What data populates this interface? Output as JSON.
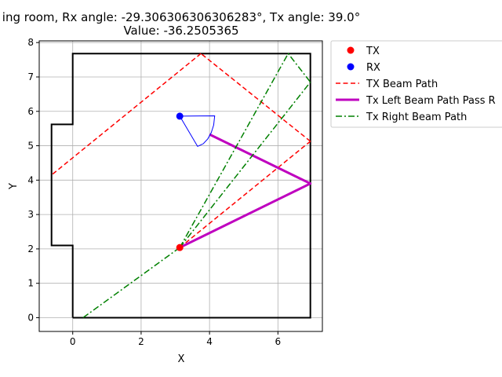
{
  "chart_data": {
    "type": "line",
    "title_line1": "ing room, Rx angle: -29.306306306306283°, Tx angle: 39.0°",
    "title_line2": "Value: -36.2505365",
    "xlabel": "X",
    "ylabel": "Y",
    "xlim": [
      -0.98,
      7.3
    ],
    "ylim": [
      -0.4,
      8.05
    ],
    "xticks": [
      0,
      2,
      4,
      6
    ],
    "yticks": [
      0,
      1,
      2,
      3,
      4,
      5,
      6,
      7,
      8
    ],
    "grid": true,
    "legend_position": "outside-top-right",
    "room_outline": {
      "x": [
        0,
        6.95,
        6.95,
        0,
        0,
        -0.62,
        -0.62,
        0,
        0
      ],
      "y": [
        0,
        0,
        7.68,
        7.68,
        5.62,
        5.62,
        2.1,
        2.1,
        0
      ],
      "color": "#000000"
    },
    "tx": {
      "x": 3.13,
      "y": 2.04,
      "color": "#ff0000"
    },
    "rx": {
      "x": 3.13,
      "y": 5.86,
      "color": "#0000ff"
    },
    "rx_sector": {
      "x": [
        3.13,
        4.15,
        4.12,
        4.05,
        3.95,
        3.82,
        3.65,
        3.13
      ],
      "y": [
        5.86,
        5.87,
        5.6,
        5.38,
        5.2,
        5.06,
        4.98,
        5.86
      ],
      "color": "#0000ff"
    },
    "series": [
      {
        "name": "TX",
        "kind": "marker",
        "color": "#ff0000"
      },
      {
        "name": "RX",
        "kind": "marker",
        "color": "#0000ff"
      },
      {
        "name": "TX Beam Path",
        "kind": "dashed",
        "color": "#ff0000",
        "paths": [
          {
            "x": [
              3.13,
              6.95
            ],
            "y": [
              2.04,
              5.13
            ]
          },
          {
            "x": [
              6.95,
              3.75
            ],
            "y": [
              5.13,
              7.68
            ]
          },
          {
            "x": [
              3.75,
              -0.62
            ],
            "y": [
              7.68,
              4.15
            ]
          }
        ]
      },
      {
        "name": "Tx Left Beam Path Pass R",
        "kind": "solid",
        "color": "#bf00bf",
        "paths": [
          {
            "x": [
              3.13,
              6.95,
              4.0
            ],
            "y": [
              2.04,
              3.9,
              5.33
            ]
          }
        ]
      },
      {
        "name": "Tx Right Beam Path",
        "kind": "dashdot",
        "color": "#008000",
        "paths": [
          {
            "x": [
              3.13,
              6.95
            ],
            "y": [
              2.04,
              6.85
            ]
          },
          {
            "x": [
              3.13,
              6.3,
              6.95
            ],
            "y": [
              2.04,
              7.68,
              6.85
            ]
          },
          {
            "x": [
              3.13,
              0.3
            ],
            "y": [
              2.04,
              0
            ]
          }
        ]
      }
    ]
  }
}
